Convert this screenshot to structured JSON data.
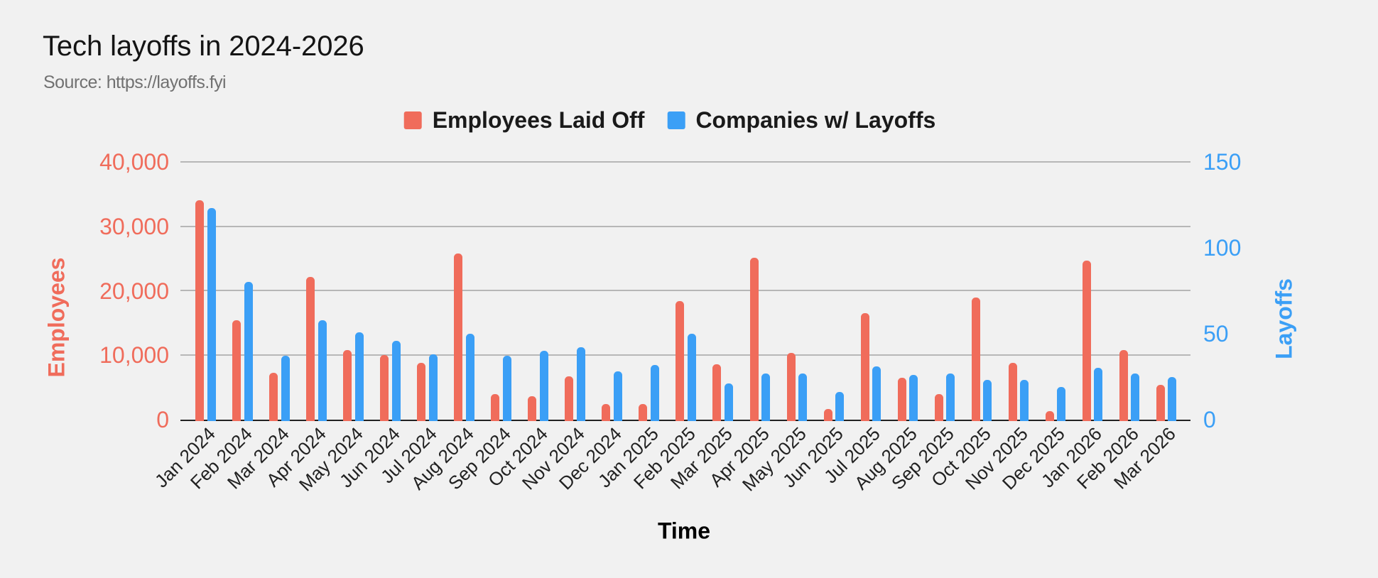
{
  "chart": {
    "title": "Tech layoffs in 2024-2026",
    "subtitle": "Source: https://layoffs.fyi"
  },
  "chart_data": {
    "type": "bar",
    "title": "Tech layoffs in 2024-2026",
    "subtitle": "Source: https://layoffs.fyi",
    "background_color": "#F1F1F1",
    "gridline_color": "#B7B7B7",
    "grid": true,
    "legend_position": "top",
    "categories": [
      "Jan 2024",
      "Feb 2024",
      "Mar 2024",
      "Apr 2024",
      "May 2024",
      "Jun 2024",
      "Jul 2024",
      "Aug 2024",
      "Sep 2024",
      "Oct 2024",
      "Nov 2024",
      "Dec 2024",
      "Jan 2025",
      "Feb 2025",
      "Mar 2025",
      "Apr 2025",
      "May 2025",
      "Jun 2025",
      "Jul 2025",
      "Aug 2025",
      "Sep 2025",
      "Oct 2025",
      "Nov 2025",
      "Dec 2025",
      "Jan 2026",
      "Feb 2026",
      "Mar 2026"
    ],
    "series": [
      {
        "name": "Employees Laid Off",
        "axis": "left",
        "color": "#F06C5B",
        "values": [
          34000,
          15450,
          7250,
          22200,
          10850,
          10050,
          8850,
          25800,
          3950,
          3650,
          6700,
          2450,
          2400,
          18350,
          8650,
          25150,
          10400,
          1600,
          16550,
          6450,
          4000,
          18950,
          8850,
          1300,
          24700,
          10850,
          5400
        ]
      },
      {
        "name": "Companies w/ Layoffs",
        "axis": "right",
        "color": "#3B9FF6",
        "values": [
          123,
          80,
          37,
          58,
          51,
          46,
          38,
          50,
          37,
          40,
          42,
          28,
          32,
          50,
          21,
          27,
          27,
          16,
          31,
          26,
          27,
          23,
          23,
          19,
          30,
          27,
          25
        ]
      }
    ],
    "left_axis": {
      "label": "Employees",
      "color": "#F06C5B",
      "min": 0,
      "max": 40000,
      "ticks": [
        0,
        10000,
        20000,
        30000,
        40000
      ]
    },
    "right_axis": {
      "label": "Layoffs",
      "color": "#3B9FF6",
      "min": 0,
      "max": 150,
      "ticks": [
        0,
        50,
        100,
        150
      ]
    },
    "x_axis": {
      "label": "Time"
    }
  }
}
